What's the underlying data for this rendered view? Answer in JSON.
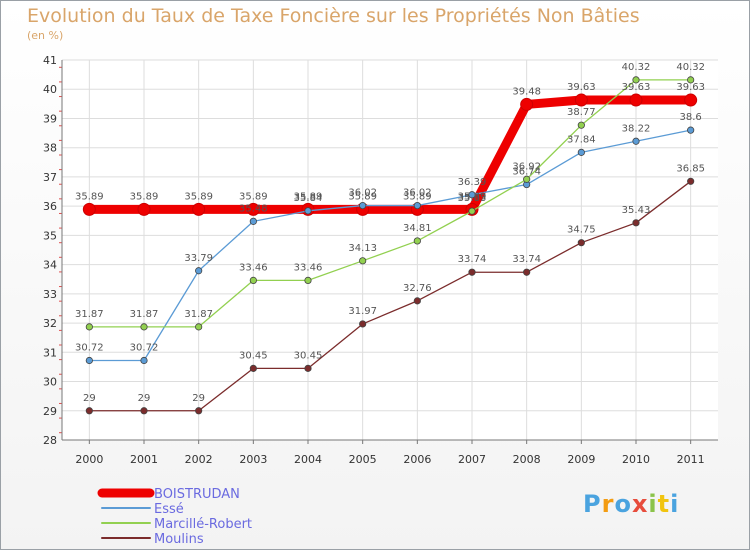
{
  "header": {
    "title": "Evolution du Taux de Taxe Foncière sur les Propriétés Non Bâties",
    "unit": "(en %)"
  },
  "logo": {
    "text": "Proxiti"
  },
  "chart_data": {
    "type": "line",
    "title": "Evolution du Taux de Taxe Foncière sur les Propriétés Non Bâties",
    "ylabel": "(en %)",
    "xlabel": "",
    "ylim": [
      28,
      41
    ],
    "y_ticks": [
      28,
      29,
      30,
      31,
      32,
      33,
      34,
      35,
      36,
      37,
      38,
      39,
      40,
      41
    ],
    "categories": [
      "2000",
      "2001",
      "2002",
      "2003",
      "2004",
      "2005",
      "2006",
      "2007",
      "2008",
      "2009",
      "2010",
      "2011"
    ],
    "legend_position": "bottom-left",
    "series": [
      {
        "name": "BOISTRUDAN",
        "color": "#ee0000",
        "values": [
          35.89,
          35.89,
          35.89,
          35.89,
          35.89,
          35.89,
          35.89,
          35.89,
          39.48,
          39.63,
          39.63,
          39.63
        ],
        "labels": [
          "35.89",
          "35.89",
          "35.89",
          "35.89",
          "35.89",
          "35.89",
          "35.89",
          "35.89",
          "39.48",
          "39.63",
          "39.63",
          "39.63"
        ]
      },
      {
        "name": "Essé",
        "color": "#5b9bd5",
        "values": [
          30.72,
          30.72,
          33.79,
          35.48,
          35.84,
          36.02,
          36.02,
          36.39,
          36.74,
          37.84,
          38.22,
          38.6
        ],
        "labels": [
          "30.72",
          "30.72",
          "33.79",
          "35.48",
          "35.84",
          "36.02",
          "36.02",
          "36.39",
          "36.74",
          "37.84",
          "38.22",
          "38.6"
        ]
      },
      {
        "name": "Marcillé-Robert",
        "color": "#92d050",
        "values": [
          31.87,
          31.87,
          31.87,
          33.46,
          33.46,
          34.13,
          34.81,
          35.83,
          36.92,
          38.77,
          40.32,
          40.32
        ],
        "labels": [
          "31.87",
          "31.87",
          "31.87",
          "33.46",
          "33.46",
          "34.13",
          "34.81",
          "35.83",
          "36.92",
          "38.77",
          "40.32",
          "40.32"
        ]
      },
      {
        "name": "Moulins",
        "color": "#7b2c2c",
        "values": [
          29,
          29,
          29,
          30.45,
          30.45,
          31.97,
          32.76,
          33.74,
          33.74,
          34.75,
          35.43,
          36.85
        ],
        "labels": [
          "29",
          "29",
          "29",
          "30.45",
          "30.45",
          "31.97",
          "32.76",
          "33.74",
          "33.74",
          "34.75",
          "35.43",
          "36.85"
        ]
      }
    ]
  }
}
